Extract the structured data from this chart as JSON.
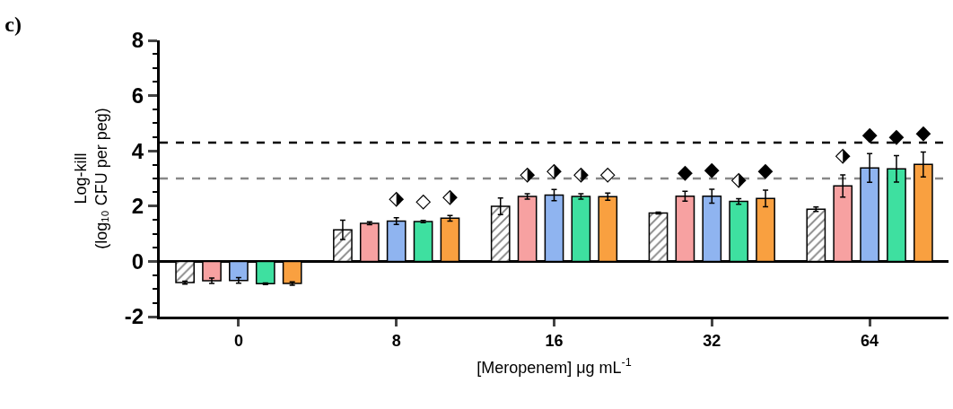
{
  "chart_data": {
    "type": "bar",
    "title": "c)",
    "xlabel": "[Meropenem] μg mL$^{-1}$",
    "ylabel": "Log-kill\n(log₁₀ CFU per peg)",
    "categories": [
      "0",
      "8",
      "16",
      "32",
      "64"
    ],
    "series": [
      {
        "color": "#000000",
        "values": [
          -0.77,
          1.14,
          1.99,
          1.75,
          1.89
        ],
        "errors": [
          0.05,
          0.35,
          0.3,
          0.03,
          0.08
        ],
        "value_labels": [
          null,
          null,
          null,
          null,
          null
        ]
      },
      {
        "color": "#f7a1a1",
        "values": [
          -0.7,
          1.38,
          2.35,
          2.36,
          2.73
        ],
        "errors": [
          0.1,
          0.05,
          0.1,
          0.18,
          0.4
        ],
        "value_labels": [
          null,
          null,
          "⬗",
          "◆",
          "⬗"
        ]
      },
      {
        "color": "#8fb4f0",
        "values": [
          -0.69,
          1.46,
          2.4,
          2.36,
          3.38
        ],
        "errors": [
          0.1,
          0.12,
          0.2,
          0.25,
          0.52
        ],
        "value_labels": [
          null,
          "⬗",
          "⬗",
          "◆",
          "◆"
        ]
      },
      {
        "color": "#3ee0a0",
        "values": [
          -0.81,
          1.44,
          2.35,
          2.17,
          3.35
        ],
        "errors": [
          0.03,
          0.04,
          0.1,
          0.1,
          0.48
        ],
        "value_labels": [
          null,
          "◇",
          "⬗",
          "⬗",
          "◆"
        ]
      },
      {
        "color": "#f9a040",
        "values": [
          -0.8,
          1.56,
          2.34,
          2.28,
          3.51
        ],
        "errors": [
          0.06,
          0.1,
          0.13,
          0.3,
          0.45
        ],
        "value_labels": [
          null,
          "⬗",
          "◇",
          "◆",
          "◆"
        ]
      }
    ],
    "ylim": [
      -2,
      8
    ],
    "yticks": [
      -2,
      0,
      2,
      4,
      6,
      8
    ],
    "ref_lines": [
      {
        "axis": "y",
        "value": 4.3,
        "color": "#000000",
        "line_style": "dashed"
      },
      {
        "axis": "y",
        "value": 3.0,
        "color": "#888888",
        "line_style": "dashed"
      }
    ]
  }
}
